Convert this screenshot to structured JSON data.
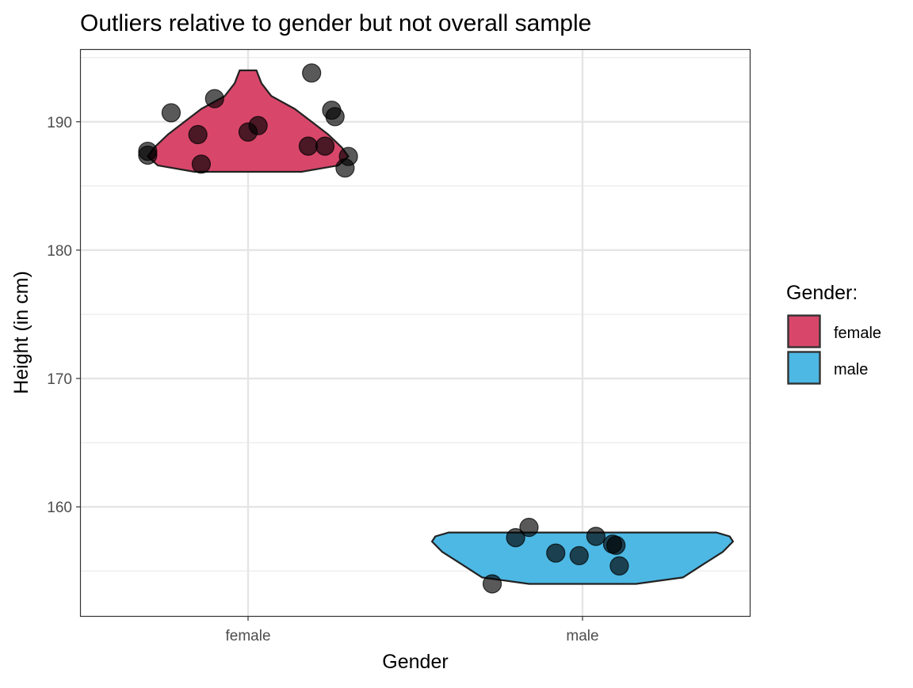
{
  "chart_data": {
    "type": "violin",
    "title": "Outliers relative to gender but not overall sample",
    "xlabel": "Gender",
    "ylabel": "Height (in cm)",
    "categories": [
      "female",
      "male"
    ],
    "ylim": [
      151.5,
      195.6
    ],
    "yticks": [
      160,
      170,
      180,
      190
    ],
    "ytick_labels": [
      "160",
      "170",
      "180",
      "190"
    ],
    "grid": true,
    "legend": {
      "title": "Gender:",
      "position": "right",
      "entries": [
        {
          "label": "female",
          "color": "#D8476A"
        },
        {
          "label": "male",
          "color": "#4DB8E4"
        }
      ]
    },
    "series": [
      {
        "name": "female",
        "color": "#D8476A",
        "violin_range": [
          186.1,
          194.0
        ],
        "violin_profile": [
          {
            "y": 186.1,
            "halfwidth": 0.16
          },
          {
            "y": 186.6,
            "halfwidth": 0.27
          },
          {
            "y": 187.3,
            "halfwidth": 0.3
          },
          {
            "y": 188.0,
            "halfwidth": 0.28
          },
          {
            "y": 189.0,
            "halfwidth": 0.24
          },
          {
            "y": 190.0,
            "halfwidth": 0.19
          },
          {
            "y": 191.0,
            "halfwidth": 0.14
          },
          {
            "y": 192.0,
            "halfwidth": 0.07
          },
          {
            "y": 193.0,
            "halfwidth": 0.04
          },
          {
            "y": 194.0,
            "halfwidth": 0.025
          }
        ],
        "points": [
          {
            "x": 0.19,
            "y": 193.8
          },
          {
            "x": -0.1,
            "y": 191.8
          },
          {
            "x": 0.25,
            "y": 190.9
          },
          {
            "x": -0.23,
            "y": 190.7
          },
          {
            "x": 0.26,
            "y": 190.4
          },
          {
            "x": 0.03,
            "y": 189.7
          },
          {
            "x": 0.0,
            "y": 189.2
          },
          {
            "x": -0.15,
            "y": 189.0
          },
          {
            "x": 0.18,
            "y": 188.1
          },
          {
            "x": 0.23,
            "y": 188.1
          },
          {
            "x": -0.3,
            "y": 187.7
          },
          {
            "x": -0.3,
            "y": 187.4
          },
          {
            "x": 0.3,
            "y": 187.3
          },
          {
            "x": -0.14,
            "y": 186.7
          },
          {
            "x": 0.29,
            "y": 186.4
          }
        ]
      },
      {
        "name": "male",
        "color": "#4DB8E4",
        "violin_range": [
          154.0,
          158.0
        ],
        "violin_profile": [
          {
            "y": 154.0,
            "halfwidth": 0.16
          },
          {
            "y": 154.5,
            "halfwidth": 0.3
          },
          {
            "y": 155.5,
            "halfwidth": 0.36
          },
          {
            "y": 156.5,
            "halfwidth": 0.42
          },
          {
            "y": 157.3,
            "halfwidth": 0.45
          },
          {
            "y": 157.7,
            "halfwidth": 0.44
          },
          {
            "y": 158.0,
            "halfwidth": 0.4
          }
        ],
        "points": [
          {
            "x": -0.16,
            "y": 158.4
          },
          {
            "x": 0.04,
            "y": 157.7
          },
          {
            "x": -0.2,
            "y": 157.6
          },
          {
            "x": 0.09,
            "y": 157.1
          },
          {
            "x": 0.1,
            "y": 157.0
          },
          {
            "x": -0.08,
            "y": 156.4
          },
          {
            "x": -0.01,
            "y": 156.2
          },
          {
            "x": 0.11,
            "y": 155.4
          },
          {
            "x": -0.27,
            "y": 154.0
          }
        ]
      }
    ]
  }
}
